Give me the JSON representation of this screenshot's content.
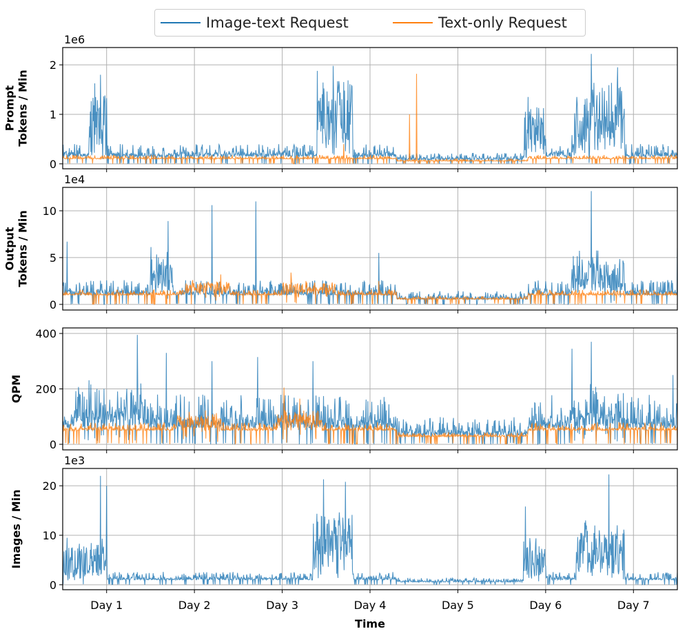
{
  "colors": {
    "image_text": "#1f77b4",
    "text_only": "#ff7f0e",
    "grid": "#b0b0b0"
  },
  "legend": {
    "items": [
      "Image-text Request",
      "Text-only Request"
    ]
  },
  "chart_data": [
    {
      "type": "line",
      "panel": "prompt-tokens",
      "ylabel": [
        "Prompt",
        "Tokens / Min"
      ],
      "multiplier": "1e6",
      "ylim": [
        -0.1,
        2.35
      ],
      "yticks": [
        0,
        1,
        2
      ],
      "ytick_labels": [
        "0",
        "1",
        "2"
      ],
      "xlim": [
        0.5,
        7.5
      ],
      "series": [
        {
          "name": "Image-text Request",
          "base": 0.15,
          "noise": 0.25,
          "bursts": [
            [
              0.8,
              1.0,
              1.3
            ],
            [
              3.4,
              3.8,
              1.5
            ],
            [
              5.75,
              6.0,
              1.0
            ],
            [
              6.3,
              6.9,
              1.4
            ]
          ],
          "spikes": [
            [
              0.93,
              1.8
            ],
            [
              3.58,
              1.98
            ],
            [
              6.52,
              2.22
            ],
            [
              6.82,
              1.95
            ],
            [
              5.8,
              1.35
            ]
          ]
        },
        {
          "name": "Text-only Request",
          "base": 0.1,
          "noise": 0.08,
          "bursts": [],
          "spikes": [
            [
              4.45,
              1.0
            ],
            [
              4.53,
              1.82
            ],
            [
              3.7,
              0.4
            ]
          ]
        }
      ]
    },
    {
      "type": "line",
      "panel": "output-tokens",
      "ylabel": [
        "Output",
        "Tokens / Min"
      ],
      "multiplier": "1e4",
      "ylim": [
        -0.6,
        12.5
      ],
      "yticks": [
        0,
        5,
        10
      ],
      "ytick_labels": [
        "0",
        "5",
        "10"
      ],
      "xlim": [
        0.5,
        7.5
      ],
      "series": [
        {
          "name": "Image-text Request",
          "base": 1.0,
          "noise": 1.6,
          "bursts": [
            [
              1.5,
              1.75,
              4.5
            ],
            [
              6.3,
              6.9,
              3.5
            ]
          ],
          "spikes": [
            [
              0.55,
              6.7
            ],
            [
              1.7,
              8.9
            ],
            [
              2.2,
              10.6
            ],
            [
              2.7,
              11.0
            ],
            [
              6.52,
              12.1
            ],
            [
              4.1,
              5.5
            ],
            [
              7.5,
              6.0
            ]
          ]
        },
        {
          "name": "Text-only Request",
          "base": 1.0,
          "noise": 0.6,
          "bursts": [
            [
              1.9,
              2.4,
              1.3
            ],
            [
              3.0,
              3.6,
              1.2
            ]
          ],
          "spikes": [
            [
              2.3,
              3.2
            ],
            [
              3.1,
              3.4
            ],
            [
              4.1,
              2.5
            ]
          ]
        }
      ]
    },
    {
      "type": "line",
      "panel": "qpm",
      "ylabel": [
        "QPM"
      ],
      "multiplier": "",
      "ylim": [
        -20,
        420
      ],
      "yticks": [
        0,
        200,
        400
      ],
      "ytick_labels": [
        "0",
        "200",
        "400"
      ],
      "xlim": [
        0.5,
        7.5
      ],
      "series": [
        {
          "name": "Image-text Request",
          "base": 60,
          "noise": 120,
          "bursts": [
            [
              0.6,
              1.4,
              60
            ],
            [
              6.3,
              6.9,
              50
            ]
          ],
          "spikes": [
            [
              1.35,
              395
            ],
            [
              1.68,
              330
            ],
            [
              2.2,
              300
            ],
            [
              2.72,
              315
            ],
            [
              3.35,
              300
            ],
            [
              6.3,
              345
            ],
            [
              6.52,
              370
            ],
            [
              7.45,
              250
            ]
          ]
        },
        {
          "name": "Text-only Request",
          "base": 50,
          "noise": 30,
          "bursts": [
            [
              1.8,
              2.3,
              45
            ],
            [
              2.95,
              3.45,
              60
            ]
          ],
          "spikes": [
            [
              3.02,
              205
            ],
            [
              3.2,
              165
            ]
          ]
        }
      ]
    },
    {
      "type": "line",
      "panel": "images",
      "ylabel": [
        "Images / Min"
      ],
      "multiplier": "1e3",
      "ylim": [
        -1,
        23.5
      ],
      "yticks": [
        0,
        10,
        20
      ],
      "ytick_labels": [
        "0",
        "10",
        "20"
      ],
      "xlim": [
        0.5,
        7.5
      ],
      "series": [
        {
          "name": "Image-text Request",
          "base": 1.0,
          "noise": 1.6,
          "bursts": [
            [
              0.5,
              1.0,
              7
            ],
            [
              3.35,
              3.8,
              13
            ],
            [
              5.75,
              6.0,
              8
            ],
            [
              6.35,
              6.9,
              11
            ]
          ],
          "spikes": [
            [
              0.93,
              22
            ],
            [
              1.0,
              20
            ],
            [
              3.47,
              21.3
            ],
            [
              3.72,
              20.8
            ],
            [
              6.72,
              22.3
            ],
            [
              5.77,
              15.8
            ],
            [
              0.55,
              9.5
            ]
          ]
        }
      ]
    }
  ],
  "xaxis": {
    "ticks": [
      1,
      2,
      3,
      4,
      5,
      6,
      7
    ],
    "labels": [
      "Day 1",
      "Day 2",
      "Day 3",
      "Day 4",
      "Day 5",
      "Day 6",
      "Day 7"
    ],
    "xlabel": "Time"
  }
}
